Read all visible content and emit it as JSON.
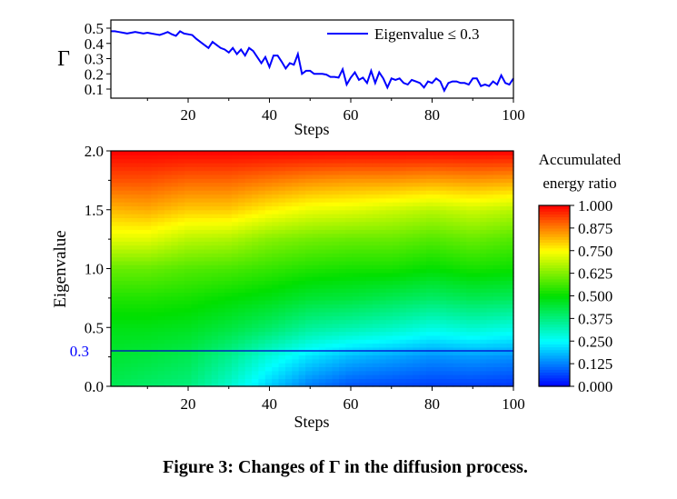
{
  "caption": "Figure 3: Changes of Γ in the diffusion process.",
  "chart_data": [
    {
      "type": "line",
      "xlabel": "Steps",
      "ylabel": "Γ",
      "xlim": [
        1,
        100
      ],
      "ylim": [
        0.05,
        0.55
      ],
      "xticks": [
        20,
        40,
        60,
        80,
        100
      ],
      "yticks": [
        0.1,
        0.2,
        0.3,
        0.4,
        0.5
      ],
      "xtick_labels": [
        "20",
        "40",
        "60",
        "80",
        "100"
      ],
      "ytick_labels": [
        "0.1",
        "0.2",
        "0.3",
        "0.4",
        "0.5"
      ],
      "legend_position": "top-right",
      "grid": false,
      "series": [
        {
          "name": "Eigenvalue ≤ 0.3",
          "color": "#0000ff",
          "x_start": 1,
          "x_step": 1,
          "values": [
            0.48,
            0.48,
            0.475,
            0.47,
            0.465,
            0.47,
            0.475,
            0.47,
            0.465,
            0.47,
            0.465,
            0.46,
            0.455,
            0.465,
            0.475,
            0.46,
            0.45,
            0.48,
            0.465,
            0.46,
            0.455,
            0.43,
            0.41,
            0.39,
            0.37,
            0.41,
            0.39,
            0.37,
            0.36,
            0.34,
            0.37,
            0.33,
            0.36,
            0.32,
            0.37,
            0.35,
            0.31,
            0.27,
            0.31,
            0.245,
            0.32,
            0.32,
            0.28,
            0.235,
            0.27,
            0.26,
            0.33,
            0.2,
            0.22,
            0.22,
            0.2,
            0.2,
            0.2,
            0.195,
            0.18,
            0.18,
            0.175,
            0.23,
            0.13,
            0.175,
            0.21,
            0.16,
            0.175,
            0.14,
            0.22,
            0.14,
            0.21,
            0.17,
            0.11,
            0.17,
            0.16,
            0.17,
            0.14,
            0.13,
            0.16,
            0.15,
            0.14,
            0.11,
            0.15,
            0.14,
            0.17,
            0.15,
            0.09,
            0.14,
            0.15,
            0.15,
            0.14,
            0.14,
            0.13,
            0.17,
            0.17,
            0.12,
            0.13,
            0.12,
            0.15,
            0.13,
            0.19,
            0.14,
            0.13,
            0.17
          ]
        }
      ]
    },
    {
      "type": "heatmap",
      "xlabel": "Steps",
      "ylabel": "Eigenvalue",
      "xlim": [
        1,
        100
      ],
      "ylim": [
        0.0,
        2.0
      ],
      "xticks": [
        20,
        40,
        60,
        80,
        100
      ],
      "xtick_labels": [
        "20",
        "40",
        "60",
        "80",
        "100"
      ],
      "yticks": [
        0.0,
        0.5,
        1.0,
        1.5,
        2.0
      ],
      "ytick_labels": [
        "0.0",
        "0.5",
        "1.0",
        "1.5",
        "2.0"
      ],
      "highlight_line": {
        "y": 0.3,
        "label": "0.3",
        "color": "#0000ff"
      },
      "colorbar": {
        "title_line1": "Accumulated",
        "title_line2": "energy ratio",
        "range": [
          0,
          1
        ],
        "ticks": [
          "1.000",
          "0.875",
          "0.750",
          "0.625",
          "0.500",
          "0.375",
          "0.250",
          "0.125",
          "0.000"
        ],
        "colormap": [
          "#0000ff",
          "#00ffff",
          "#00e000",
          "#ffff00",
          "#ff0000"
        ]
      },
      "x": [
        1,
        10,
        20,
        30,
        40,
        50,
        60,
        70,
        80,
        90,
        100
      ],
      "y": [
        0.0,
        0.25,
        0.5,
        0.75,
        1.0,
        1.25,
        1.5,
        1.75,
        2.0
      ],
      "z": [
        [
          0.42,
          0.45,
          0.48,
          0.53,
          0.6,
          0.72,
          0.82,
          0.92,
          1.0
        ],
        [
          0.4,
          0.44,
          0.48,
          0.53,
          0.6,
          0.72,
          0.83,
          0.92,
          1.0
        ],
        [
          0.38,
          0.42,
          0.47,
          0.52,
          0.58,
          0.68,
          0.8,
          0.9,
          1.0
        ],
        [
          0.3,
          0.36,
          0.44,
          0.5,
          0.57,
          0.67,
          0.8,
          0.9,
          1.0
        ],
        [
          0.2,
          0.28,
          0.4,
          0.48,
          0.55,
          0.63,
          0.76,
          0.88,
          1.0
        ],
        [
          0.12,
          0.22,
          0.35,
          0.45,
          0.53,
          0.61,
          0.73,
          0.86,
          1.0
        ],
        [
          0.08,
          0.18,
          0.33,
          0.44,
          0.52,
          0.6,
          0.72,
          0.85,
          1.0
        ],
        [
          0.07,
          0.16,
          0.31,
          0.42,
          0.52,
          0.6,
          0.7,
          0.85,
          1.0
        ],
        [
          0.06,
          0.14,
          0.28,
          0.4,
          0.5,
          0.58,
          0.68,
          0.84,
          1.0
        ],
        [
          0.06,
          0.15,
          0.3,
          0.42,
          0.52,
          0.6,
          0.7,
          0.85,
          1.0
        ],
        [
          0.05,
          0.14,
          0.28,
          0.41,
          0.51,
          0.58,
          0.68,
          0.84,
          1.0
        ]
      ]
    }
  ]
}
